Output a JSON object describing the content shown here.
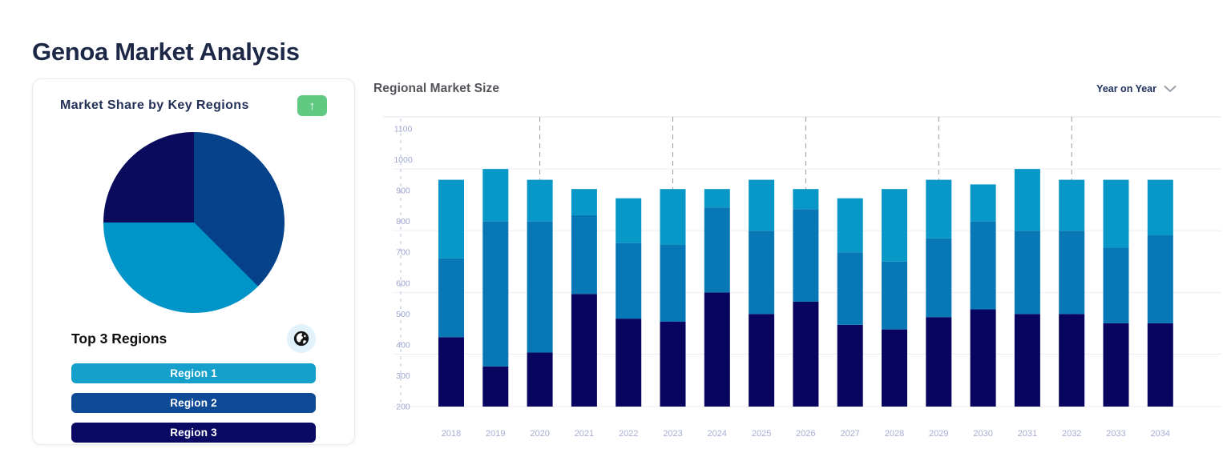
{
  "page": {
    "title": "Genoa Market Analysis"
  },
  "market_share_card": {
    "title": "Market Share by Key Regions",
    "expand_button": {
      "icon": "arrow-up",
      "color": "#62c983",
      "glyph": "↑"
    },
    "top_regions": {
      "title": "Top 3 Regions",
      "icon": "globe-icon",
      "items": [
        {
          "label": "Region 1",
          "color": "#14a0ca"
        },
        {
          "label": "Region 2",
          "color": "#0e4a96"
        },
        {
          "label": "Region 3",
          "color": "#0a0a64"
        }
      ]
    }
  },
  "regional_market_size": {
    "title": "Regional Market Size",
    "period_selector": {
      "label": "Year on Year",
      "icon": "chevron-down"
    }
  },
  "chart_data": [
    {
      "type": "pie",
      "name": "market-share-by-key-regions",
      "slices": [
        {
          "label": "Region 2",
          "value": 37.5,
          "color": "#06428a"
        },
        {
          "label": "Region 1",
          "value": 37.5,
          "color": "#0095c8"
        },
        {
          "label": "Region 3",
          "value": 25.0,
          "color": "#0b0b5e"
        }
      ],
      "start_angle_deg": 0,
      "legend": "none"
    },
    {
      "type": "bar",
      "subtype": "stacked",
      "title": "Regional Market Size",
      "categories": [
        "2018",
        "2019",
        "2020",
        "2021",
        "2022",
        "2023",
        "2024",
        "2025",
        "2026",
        "2027",
        "2028",
        "2029",
        "2030",
        "2031",
        "2032",
        "2033",
        "2034"
      ],
      "y_base": 200,
      "ylim": [
        200,
        1150
      ],
      "y_ticks": [
        200,
        300,
        400,
        500,
        600,
        700,
        800,
        900,
        1000,
        1100
      ],
      "solid_gridlines_at": [
        370,
        570,
        770,
        970
      ],
      "dashed_gridlines_at_categories": [
        "2020",
        "2023",
        "2026",
        "2029",
        "2032"
      ],
      "series": [
        {
          "name": "series-dark-navy",
          "color": "#07055f",
          "values": [
            225,
            130,
            175,
            365,
            285,
            275,
            370,
            300,
            340,
            265,
            250,
            290,
            315,
            300,
            300,
            270,
            270
          ]
        },
        {
          "name": "series-blue",
          "color": "#0777b6",
          "values": [
            255,
            470,
            425,
            255,
            245,
            250,
            275,
            270,
            300,
            235,
            220,
            255,
            285,
            270,
            270,
            245,
            285
          ]
        },
        {
          "name": "series-cyan",
          "color": "#0798c7",
          "values": [
            255,
            170,
            135,
            85,
            145,
            180,
            60,
            165,
            65,
            175,
            235,
            190,
            120,
            200,
            165,
            220,
            180
          ]
        }
      ],
      "stack_totals": [
        935,
        970,
        935,
        905,
        875,
        905,
        905,
        935,
        905,
        875,
        905,
        935,
        920,
        970,
        935,
        935,
        935
      ],
      "axis_label_color": "#a6aed4",
      "legend": "none"
    }
  ]
}
